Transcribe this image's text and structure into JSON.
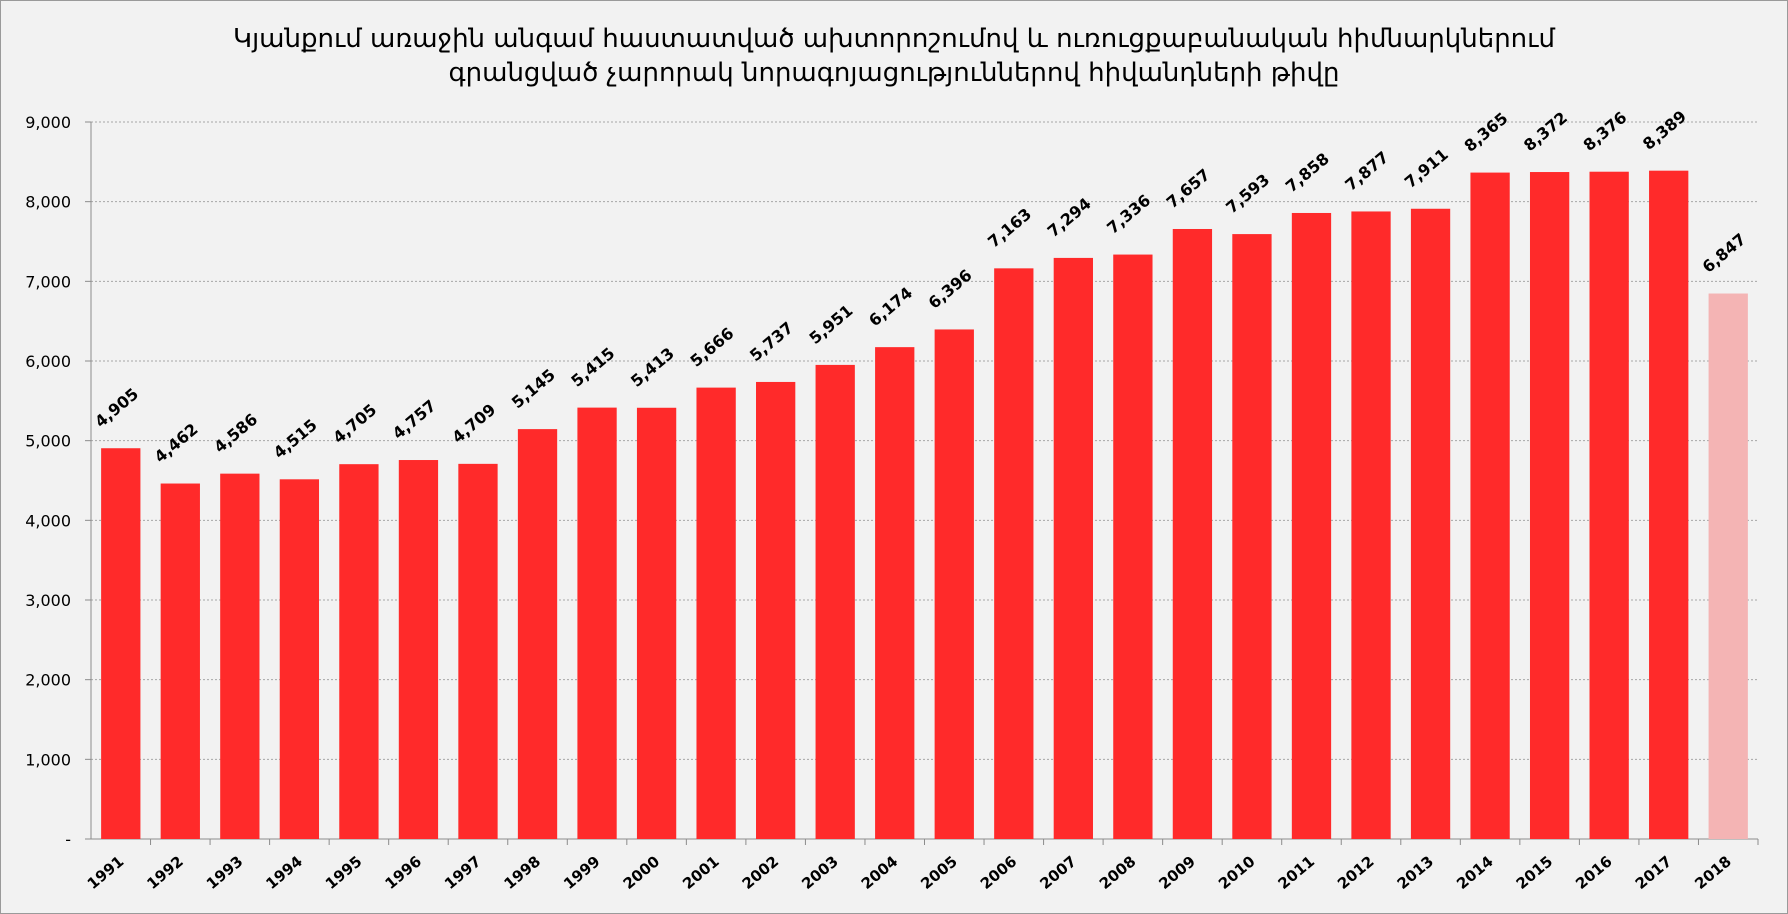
{
  "chart_data": {
    "type": "bar",
    "title_lines": [
      "Կյանքում առաջին անգամ հաստատված ախտորոշումով և ուռուցքաբանական հիմնարկներում",
      "գրանցված չարորակ նորագոյացություններով հիվանդների թիվը"
    ],
    "categories": [
      "1991",
      "1992",
      "1993",
      "1994",
      "1995",
      "1996",
      "1997",
      "1998",
      "1999",
      "2000",
      "2001",
      "2002",
      "2003",
      "2004",
      "2005",
      "2006",
      "2007",
      "2008",
      "2009",
      "2010",
      "2011",
      "2012",
      "2013",
      "2014",
      "2015",
      "2016",
      "2017",
      "2018"
    ],
    "values": [
      4905,
      4462,
      4586,
      4515,
      4705,
      4757,
      4709,
      5145,
      5415,
      5413,
      5666,
      5737,
      5951,
      6174,
      6396,
      7163,
      7294,
      7336,
      7657,
      7593,
      7858,
      7877,
      7911,
      8365,
      8372,
      8376,
      8389,
      6847
    ],
    "value_labels": [
      "4,905",
      "4,462",
      "4,586",
      "4,515",
      "4,705",
      "4,757",
      "4,709",
      "5,145",
      "5,415",
      "5,413",
      "5,666",
      "5,737",
      "5,951",
      "6,174",
      "6,396",
      "7,163",
      "7,294",
      "7,336",
      "7,657",
      "7,593",
      "7,858",
      "7,877",
      "7,911",
      "8,365",
      "8,372",
      "8,376",
      "8,389",
      "6,847"
    ],
    "ylim": [
      0,
      9000
    ],
    "y_ticks": [
      0,
      1000,
      2000,
      3000,
      4000,
      5000,
      6000,
      7000,
      8000,
      9000
    ],
    "y_tick_labels": [
      "-",
      "1,000",
      "2,000",
      "3,000",
      "4,000",
      "5,000",
      "6,000",
      "7,000",
      "8,000",
      "9,000"
    ],
    "grid": true,
    "legend": "none",
    "colors": {
      "bar": "#ff2a2a",
      "bar_highlight": "#f4b4b4",
      "grid": "#a6a6a6",
      "axis": "#8c8c8c"
    },
    "highlight_index": 27
  }
}
